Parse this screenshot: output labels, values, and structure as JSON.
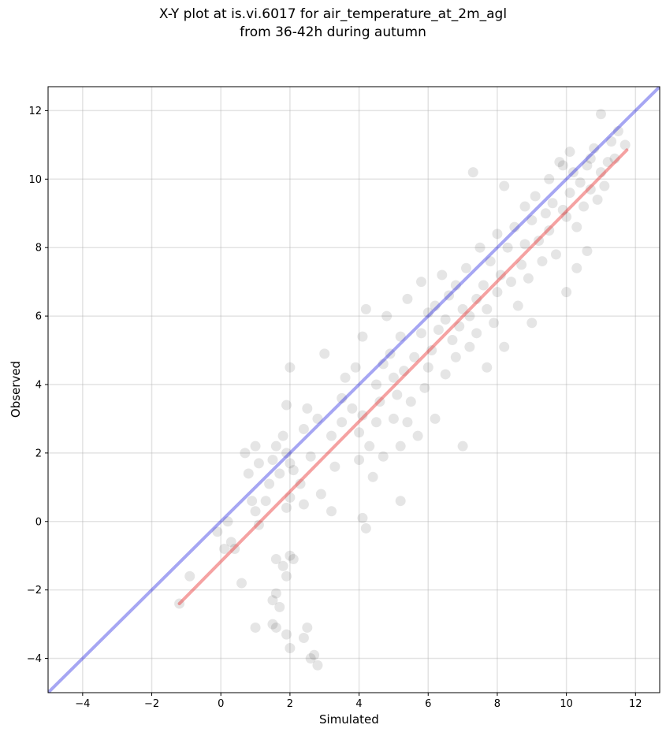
{
  "chart_data": {
    "type": "scatter",
    "title": "X-Y plot at is.vi.6017 for air_temperature_at_2m_agl",
    "subtitle": "from 36-42h during autumn",
    "xlabel": "Simulated",
    "ylabel": "Observed",
    "xlim": [
      -5,
      12.7
    ],
    "ylim": [
      -5,
      12.7
    ],
    "xticks": [
      -4,
      -2,
      0,
      2,
      4,
      6,
      8,
      10,
      12
    ],
    "yticks": [
      -4,
      -2,
      0,
      2,
      4,
      6,
      8,
      10,
      12
    ],
    "grid": true,
    "colors": {
      "points": "#000000",
      "identity_line": "#0000dd",
      "fit_line": "#e83030"
    },
    "identity_line": {
      "from": [
        -5,
        -5
      ],
      "to": [
        12.7,
        12.7
      ]
    },
    "fit_line": {
      "from": [
        -1.2,
        -2.4
      ],
      "to": [
        11.75,
        10.85
      ]
    },
    "series": [
      {
        "points": [
          [
            -1.2,
            -2.4
          ],
          [
            -0.9,
            -1.6
          ],
          [
            -0.1,
            -0.3
          ],
          [
            0.2,
            0.0
          ],
          [
            0.1,
            -0.8
          ],
          [
            0.4,
            -0.8
          ],
          [
            0.3,
            -0.6
          ],
          [
            0.6,
            -1.8
          ],
          [
            0.7,
            2.0
          ],
          [
            0.8,
            1.4
          ],
          [
            1.0,
            2.2
          ],
          [
            0.9,
            0.6
          ],
          [
            1.0,
            0.3
          ],
          [
            1.1,
            -0.1
          ],
          [
            1.1,
            1.7
          ],
          [
            1.3,
            0.6
          ],
          [
            1.5,
            1.8
          ],
          [
            1.6,
            2.2
          ],
          [
            1.4,
            1.1
          ],
          [
            1.7,
            1.4
          ],
          [
            1.8,
            2.5
          ],
          [
            1.9,
            2.0
          ],
          [
            2.0,
            1.7
          ],
          [
            2.0,
            0.7
          ],
          [
            1.9,
            0.4
          ],
          [
            2.1,
            1.5
          ],
          [
            2.3,
            1.1
          ],
          [
            2.4,
            2.7
          ],
          [
            2.4,
            0.5
          ],
          [
            2.6,
            1.9
          ],
          [
            2.0,
            4.5
          ],
          [
            1.9,
            3.4
          ],
          [
            2.5,
            3.3
          ],
          [
            2.8,
            3.0
          ],
          [
            3.0,
            4.9
          ],
          [
            2.9,
            0.8
          ],
          [
            3.2,
            0.3
          ],
          [
            3.3,
            1.6
          ],
          [
            3.2,
            2.5
          ],
          [
            3.5,
            2.9
          ],
          [
            1.5,
            -2.3
          ],
          [
            1.6,
            -2.1
          ],
          [
            1.5,
            -3.0
          ],
          [
            1.6,
            -3.1
          ],
          [
            1.0,
            -3.1
          ],
          [
            1.8,
            -1.3
          ],
          [
            1.9,
            -1.6
          ],
          [
            2.0,
            -1.0
          ],
          [
            2.1,
            -1.1
          ],
          [
            1.9,
            -3.3
          ],
          [
            2.0,
            -3.7
          ],
          [
            2.4,
            -3.4
          ],
          [
            2.5,
            -3.1
          ],
          [
            2.6,
            -4.0
          ],
          [
            2.8,
            -4.2
          ],
          [
            2.7,
            -3.9
          ],
          [
            1.6,
            -1.1
          ],
          [
            1.7,
            -2.5
          ],
          [
            4.1,
            0.1
          ],
          [
            4.2,
            -0.2
          ],
          [
            3.5,
            3.6
          ],
          [
            3.6,
            4.2
          ],
          [
            3.8,
            3.3
          ],
          [
            3.9,
            4.5
          ],
          [
            4.0,
            2.6
          ],
          [
            4.0,
            1.8
          ],
          [
            4.1,
            3.1
          ],
          [
            4.1,
            5.4
          ],
          [
            4.2,
            6.2
          ],
          [
            4.3,
            2.2
          ],
          [
            4.4,
            1.3
          ],
          [
            4.5,
            4.0
          ],
          [
            4.5,
            2.9
          ],
          [
            4.6,
            3.5
          ],
          [
            4.7,
            4.6
          ],
          [
            4.7,
            1.9
          ],
          [
            4.8,
            6.0
          ],
          [
            4.9,
            4.9
          ],
          [
            5.0,
            3.0
          ],
          [
            5.0,
            4.2
          ],
          [
            5.1,
            3.7
          ],
          [
            5.2,
            0.6
          ],
          [
            5.2,
            2.2
          ],
          [
            5.2,
            5.4
          ],
          [
            5.3,
            4.4
          ],
          [
            5.4,
            6.5
          ],
          [
            5.4,
            2.9
          ],
          [
            5.5,
            3.5
          ],
          [
            5.6,
            4.8
          ],
          [
            5.7,
            2.5
          ],
          [
            5.8,
            5.5
          ],
          [
            5.8,
            7.0
          ],
          [
            5.9,
            3.9
          ],
          [
            6.0,
            6.1
          ],
          [
            6.0,
            4.5
          ],
          [
            6.1,
            5.0
          ],
          [
            6.2,
            6.3
          ],
          [
            6.2,
            3.0
          ],
          [
            6.3,
            5.6
          ],
          [
            6.4,
            7.2
          ],
          [
            6.5,
            4.3
          ],
          [
            6.5,
            5.9
          ],
          [
            6.6,
            6.6
          ],
          [
            6.7,
            5.3
          ],
          [
            6.8,
            6.9
          ],
          [
            6.8,
            4.8
          ],
          [
            6.9,
            5.7
          ],
          [
            7.0,
            6.2
          ],
          [
            7.0,
            2.2
          ],
          [
            7.1,
            7.4
          ],
          [
            7.2,
            5.1
          ],
          [
            7.2,
            6.0
          ],
          [
            7.3,
            10.2
          ],
          [
            7.4,
            6.5
          ],
          [
            7.4,
            5.5
          ],
          [
            7.5,
            8.0
          ],
          [
            7.6,
            6.9
          ],
          [
            7.7,
            4.5
          ],
          [
            7.7,
            6.2
          ],
          [
            7.8,
            7.6
          ],
          [
            7.9,
            5.8
          ],
          [
            8.0,
            8.4
          ],
          [
            8.0,
            6.7
          ],
          [
            8.1,
            7.2
          ],
          [
            8.2,
            5.1
          ],
          [
            8.2,
            9.8
          ],
          [
            8.3,
            8.0
          ],
          [
            8.4,
            7.0
          ],
          [
            8.5,
            8.6
          ],
          [
            8.6,
            6.3
          ],
          [
            8.7,
            7.5
          ],
          [
            8.8,
            9.2
          ],
          [
            8.8,
            8.1
          ],
          [
            8.9,
            7.1
          ],
          [
            9.0,
            5.8
          ],
          [
            9.0,
            8.8
          ],
          [
            9.1,
            9.5
          ],
          [
            9.2,
            8.2
          ],
          [
            9.3,
            7.6
          ],
          [
            9.4,
            9.0
          ],
          [
            9.5,
            10.0
          ],
          [
            9.5,
            8.5
          ],
          [
            9.6,
            9.3
          ],
          [
            9.7,
            7.8
          ],
          [
            9.8,
            10.5
          ],
          [
            9.9,
            9.1
          ],
          [
            10.0,
            6.7
          ],
          [
            10.0,
            8.9
          ],
          [
            10.1,
            9.6
          ],
          [
            10.2,
            10.2
          ],
          [
            10.3,
            7.4
          ],
          [
            10.3,
            8.6
          ],
          [
            10.4,
            9.9
          ],
          [
            10.5,
            9.2
          ],
          [
            10.6,
            7.9
          ],
          [
            10.6,
            10.4
          ],
          [
            10.7,
            9.7
          ],
          [
            10.8,
            10.9
          ],
          [
            10.9,
            9.4
          ],
          [
            11.0,
            11.9
          ],
          [
            11.0,
            10.2
          ],
          [
            11.1,
            9.8
          ],
          [
            11.2,
            10.5
          ],
          [
            11.3,
            11.1
          ],
          [
            11.5,
            11.4
          ],
          [
            11.7,
            11.0
          ],
          [
            9.9,
            10.4
          ],
          [
            10.1,
            10.8
          ],
          [
            10.7,
            10.6
          ],
          [
            11.4,
            10.6
          ]
        ]
      }
    ]
  }
}
